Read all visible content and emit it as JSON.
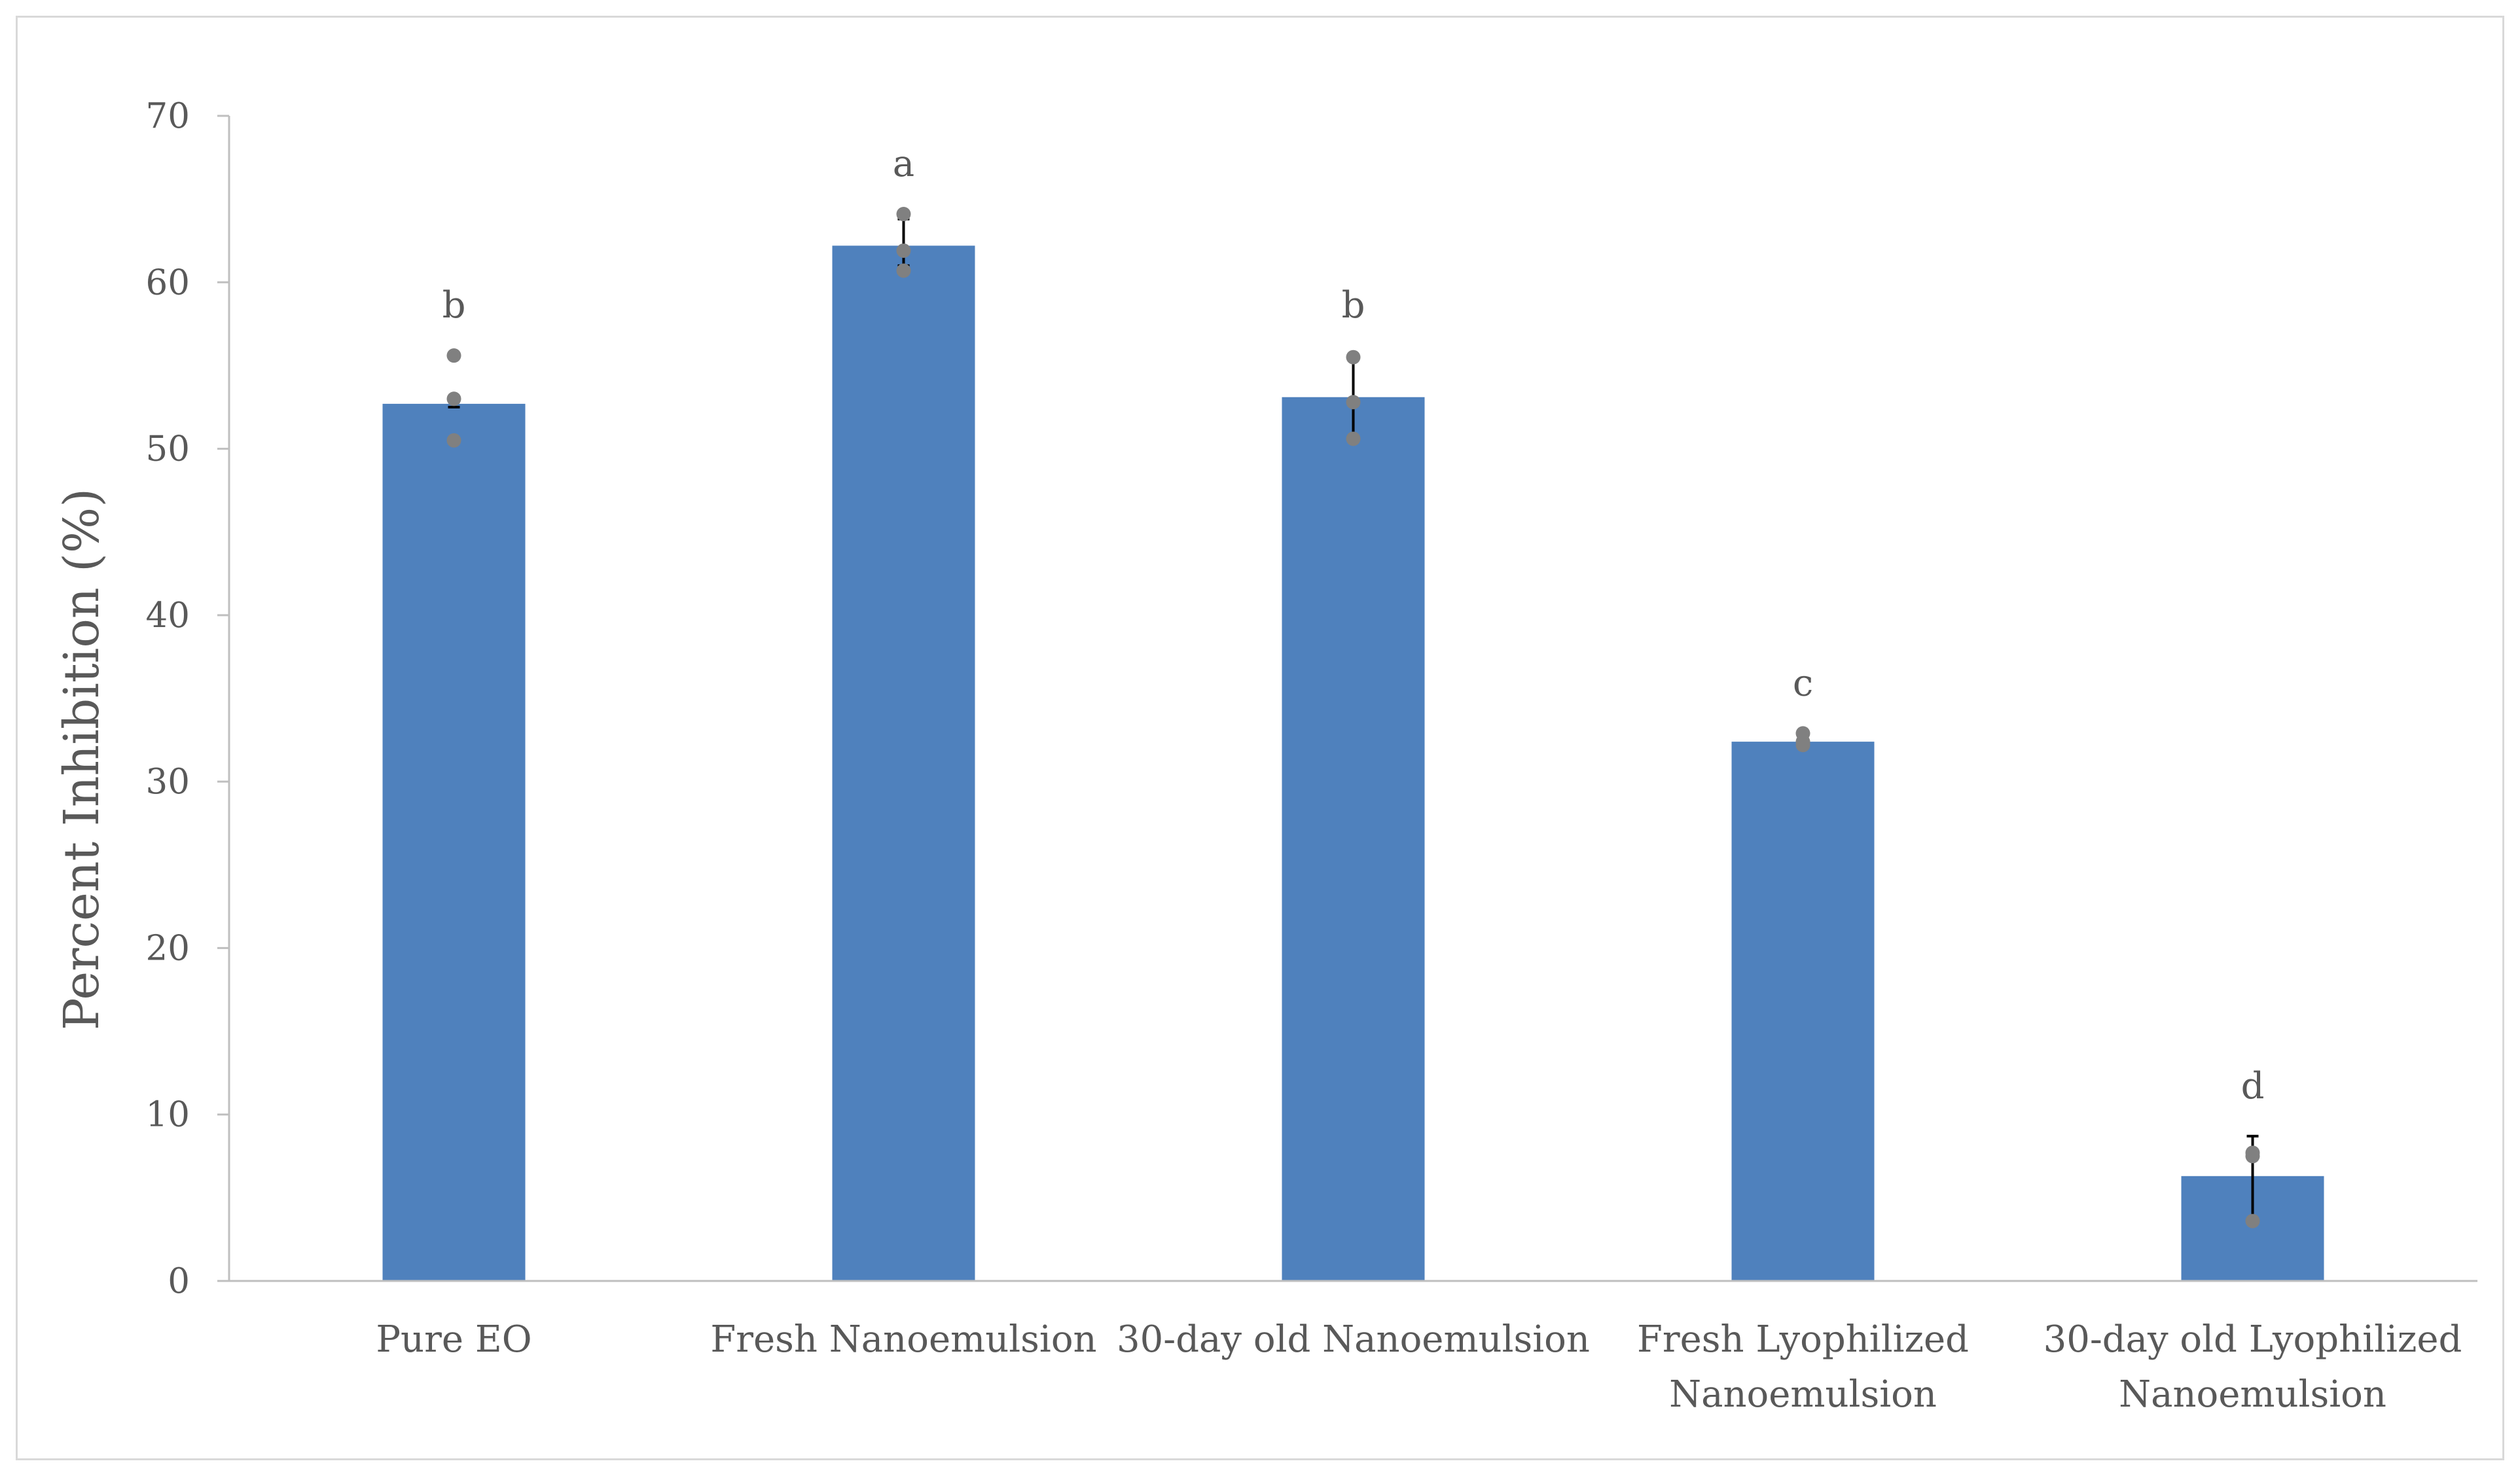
{
  "chart_data": {
    "type": "bar",
    "title": "",
    "xlabel": "",
    "ylabel": "Percent Inhibition (%)",
    "ylim": [
      0,
      70
    ],
    "yticks": [
      0,
      10,
      20,
      30,
      40,
      50,
      60,
      70
    ],
    "grid": false,
    "legend": "none",
    "bar_color": "#4f81bd",
    "point_color": "#808080",
    "error_bar_color": "#000000",
    "categories": [
      {
        "lines": [
          "Pure EO"
        ]
      },
      {
        "lines": [
          "Fresh Nanoemulsion"
        ]
      },
      {
        "lines": [
          "30-day old Nanoemulsion"
        ]
      },
      {
        "lines": [
          "Fresh Lyophilized",
          "Nanoemulsion"
        ]
      },
      {
        "lines": [
          "30-day old Lyophilized",
          "Nanoemulsion"
        ]
      }
    ],
    "values": [
      52.7,
      62.2,
      53.1,
      32.4,
      6.3
    ],
    "error_lower": [
      52.5,
      61.0,
      50.5,
      32.2,
      3.7
    ],
    "error_upper": [
      52.9,
      63.8,
      55.6,
      32.7,
      8.7
    ],
    "replicates": [
      [
        55.6,
        53.0,
        50.5
      ],
      [
        64.1,
        61.9,
        60.7
      ],
      [
        55.5,
        52.8,
        50.6
      ],
      [
        32.9,
        32.4,
        32.2
      ],
      [
        7.7,
        7.5,
        3.6
      ]
    ],
    "significance_letters": [
      "b",
      "a",
      "b",
      "c",
      "d"
    ]
  }
}
